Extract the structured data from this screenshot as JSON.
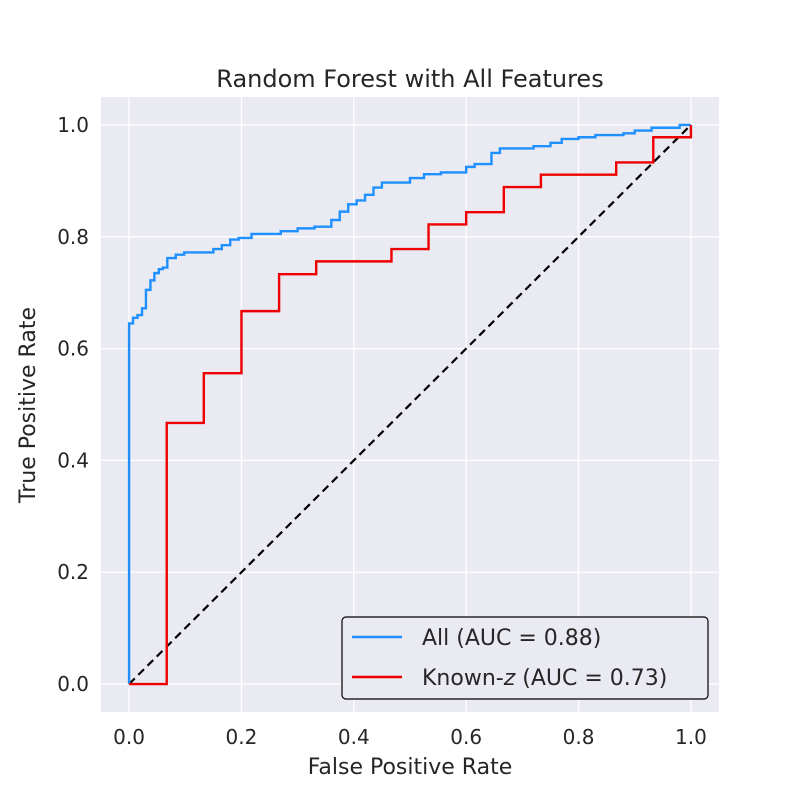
{
  "chart_data": {
    "type": "line",
    "title": "Random Forest with All Features",
    "xlabel": "False Positive Rate",
    "ylabel": "True Positive Rate",
    "xlim": [
      -0.05,
      1.05
    ],
    "ylim": [
      -0.05,
      1.05
    ],
    "xticks": [
      0.0,
      0.2,
      0.4,
      0.6,
      0.8,
      1.0
    ],
    "xtick_labels": [
      "0.0",
      "0.2",
      "0.4",
      "0.6",
      "0.8",
      "1.0"
    ],
    "yticks": [
      0.0,
      0.2,
      0.4,
      0.6,
      0.8,
      1.0
    ],
    "ytick_labels": [
      "0.0",
      "0.2",
      "0.4",
      "0.6",
      "0.8",
      "1.0"
    ],
    "grid": true,
    "legend_position": "lower-right",
    "background_color": "#eaeaf2",
    "series": [
      {
        "name": "All (AUC = 0.88)",
        "legend_prefix": "All",
        "legend_italic": "",
        "legend_suffix": " (AUC = 0.88)",
        "color": "#1e90ff",
        "style": "step",
        "points": [
          [
            0.0,
            0.0
          ],
          [
            0.0,
            0.645
          ],
          [
            0.007,
            0.645
          ],
          [
            0.007,
            0.655
          ],
          [
            0.015,
            0.655
          ],
          [
            0.015,
            0.66
          ],
          [
            0.023,
            0.66
          ],
          [
            0.023,
            0.672
          ],
          [
            0.03,
            0.672
          ],
          [
            0.03,
            0.705
          ],
          [
            0.038,
            0.705
          ],
          [
            0.038,
            0.722
          ],
          [
            0.045,
            0.722
          ],
          [
            0.045,
            0.735
          ],
          [
            0.053,
            0.735
          ],
          [
            0.053,
            0.742
          ],
          [
            0.06,
            0.742
          ],
          [
            0.06,
            0.745
          ],
          [
            0.068,
            0.745
          ],
          [
            0.068,
            0.762
          ],
          [
            0.083,
            0.762
          ],
          [
            0.083,
            0.768
          ],
          [
            0.098,
            0.768
          ],
          [
            0.098,
            0.772
          ],
          [
            0.15,
            0.772
          ],
          [
            0.15,
            0.778
          ],
          [
            0.165,
            0.778
          ],
          [
            0.165,
            0.785
          ],
          [
            0.18,
            0.785
          ],
          [
            0.18,
            0.795
          ],
          [
            0.195,
            0.795
          ],
          [
            0.195,
            0.798
          ],
          [
            0.218,
            0.798
          ],
          [
            0.218,
            0.805
          ],
          [
            0.27,
            0.805
          ],
          [
            0.27,
            0.81
          ],
          [
            0.3,
            0.81
          ],
          [
            0.3,
            0.815
          ],
          [
            0.33,
            0.815
          ],
          [
            0.33,
            0.818
          ],
          [
            0.36,
            0.818
          ],
          [
            0.36,
            0.83
          ],
          [
            0.375,
            0.83
          ],
          [
            0.375,
            0.845
          ],
          [
            0.39,
            0.845
          ],
          [
            0.39,
            0.858
          ],
          [
            0.405,
            0.858
          ],
          [
            0.405,
            0.865
          ],
          [
            0.42,
            0.865
          ],
          [
            0.42,
            0.875
          ],
          [
            0.435,
            0.875
          ],
          [
            0.435,
            0.888
          ],
          [
            0.45,
            0.888
          ],
          [
            0.45,
            0.897
          ],
          [
            0.5,
            0.897
          ],
          [
            0.5,
            0.905
          ],
          [
            0.525,
            0.905
          ],
          [
            0.525,
            0.912
          ],
          [
            0.555,
            0.912
          ],
          [
            0.555,
            0.915
          ],
          [
            0.6,
            0.915
          ],
          [
            0.6,
            0.925
          ],
          [
            0.615,
            0.925
          ],
          [
            0.615,
            0.93
          ],
          [
            0.645,
            0.93
          ],
          [
            0.645,
            0.95
          ],
          [
            0.66,
            0.95
          ],
          [
            0.66,
            0.958
          ],
          [
            0.72,
            0.958
          ],
          [
            0.72,
            0.962
          ],
          [
            0.75,
            0.962
          ],
          [
            0.75,
            0.968
          ],
          [
            0.77,
            0.968
          ],
          [
            0.77,
            0.975
          ],
          [
            0.8,
            0.975
          ],
          [
            0.8,
            0.978
          ],
          [
            0.83,
            0.978
          ],
          [
            0.83,
            0.982
          ],
          [
            0.88,
            0.982
          ],
          [
            0.88,
            0.985
          ],
          [
            0.9,
            0.985
          ],
          [
            0.9,
            0.99
          ],
          [
            0.93,
            0.99
          ],
          [
            0.93,
            0.995
          ],
          [
            0.98,
            0.995
          ],
          [
            0.98,
            1.0
          ],
          [
            1.0,
            1.0
          ]
        ]
      },
      {
        "name": "Known-z (AUC = 0.73)",
        "legend_prefix": "Known-",
        "legend_italic": "z",
        "legend_suffix": " (AUC = 0.73)",
        "color": "#ee0000",
        "style": "step",
        "points": [
          [
            0.0,
            0.0
          ],
          [
            0.067,
            0.0
          ],
          [
            0.067,
            0.467
          ],
          [
            0.133,
            0.467
          ],
          [
            0.133,
            0.556
          ],
          [
            0.2,
            0.556
          ],
          [
            0.2,
            0.667
          ],
          [
            0.267,
            0.667
          ],
          [
            0.267,
            0.733
          ],
          [
            0.333,
            0.733
          ],
          [
            0.333,
            0.756
          ],
          [
            0.467,
            0.756
          ],
          [
            0.467,
            0.778
          ],
          [
            0.533,
            0.778
          ],
          [
            0.533,
            0.822
          ],
          [
            0.6,
            0.822
          ],
          [
            0.6,
            0.844
          ],
          [
            0.667,
            0.844
          ],
          [
            0.667,
            0.889
          ],
          [
            0.733,
            0.889
          ],
          [
            0.733,
            0.911
          ],
          [
            0.867,
            0.911
          ],
          [
            0.867,
            0.933
          ],
          [
            0.933,
            0.933
          ],
          [
            0.933,
            0.978
          ],
          [
            1.0,
            0.978
          ],
          [
            1.0,
            1.0
          ]
        ]
      }
    ],
    "reference_line": {
      "points": [
        [
          0.0,
          0.0
        ],
        [
          1.0,
          1.0
        ]
      ],
      "color": "#000000",
      "dash": true
    }
  }
}
